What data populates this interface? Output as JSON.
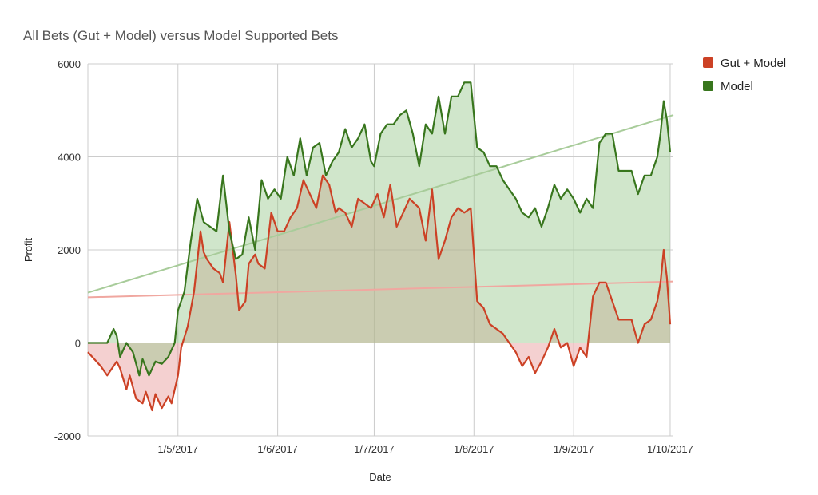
{
  "chart_data": {
    "type": "area",
    "title": "All Bets (Gut + Model) versus Model Supported Bets",
    "xlabel": "Date",
    "ylabel": "Profit",
    "ylim": [
      -2000,
      6000
    ],
    "yticks": [
      -2000,
      0,
      2000,
      4000,
      6000
    ],
    "xlim": [
      "2017-04-03",
      "2017-10-02"
    ],
    "xticks": [
      {
        "date": "2017-05-01",
        "label": "1/5/2017"
      },
      {
        "date": "2017-06-01",
        "label": "1/6/2017"
      },
      {
        "date": "2017-07-01",
        "label": "1/7/2017"
      },
      {
        "date": "2017-08-01",
        "label": "1/8/2017"
      },
      {
        "date": "2017-09-01",
        "label": "1/9/2017"
      },
      {
        "date": "2017-10-01",
        "label": "1/10/2017"
      }
    ],
    "grid": true,
    "legend_position": "right",
    "series": [
      {
        "name": "Gut + Model",
        "color": "#cc4125",
        "fill": "rgba(230,150,150,0.45)",
        "trendline": {
          "color": "#f0a7a0",
          "start": 980,
          "end": 1320
        },
        "x": [
          "2017-04-03",
          "2017-04-05",
          "2017-04-07",
          "2017-04-09",
          "2017-04-10",
          "2017-04-12",
          "2017-04-13",
          "2017-04-15",
          "2017-04-16",
          "2017-04-18",
          "2017-04-20",
          "2017-04-21",
          "2017-04-23",
          "2017-04-24",
          "2017-04-26",
          "2017-04-28",
          "2017-04-29",
          "2017-05-01",
          "2017-05-02",
          "2017-05-04",
          "2017-05-06",
          "2017-05-08",
          "2017-05-09",
          "2017-05-10",
          "2017-05-12",
          "2017-05-14",
          "2017-05-15",
          "2017-05-17",
          "2017-05-19",
          "2017-05-20",
          "2017-05-22",
          "2017-05-23",
          "2017-05-25",
          "2017-05-26",
          "2017-05-28",
          "2017-05-30",
          "2017-06-01",
          "2017-06-03",
          "2017-06-05",
          "2017-06-07",
          "2017-06-09",
          "2017-06-11",
          "2017-06-13",
          "2017-06-15",
          "2017-06-17",
          "2017-06-19",
          "2017-06-20",
          "2017-06-22",
          "2017-06-24",
          "2017-06-26",
          "2017-06-28",
          "2017-06-30",
          "2017-07-02",
          "2017-07-04",
          "2017-07-06",
          "2017-07-08",
          "2017-07-10",
          "2017-07-12",
          "2017-07-15",
          "2017-07-17",
          "2017-07-19",
          "2017-07-21",
          "2017-07-23",
          "2017-07-25",
          "2017-07-27",
          "2017-07-29",
          "2017-07-31",
          "2017-08-02",
          "2017-08-04",
          "2017-08-06",
          "2017-08-08",
          "2017-08-10",
          "2017-08-12",
          "2017-08-14",
          "2017-08-16",
          "2017-08-18",
          "2017-08-20",
          "2017-08-22",
          "2017-08-24",
          "2017-08-26",
          "2017-08-28",
          "2017-08-30",
          "2017-09-01",
          "2017-09-03",
          "2017-09-05",
          "2017-09-07",
          "2017-09-09",
          "2017-09-11",
          "2017-09-13",
          "2017-09-15",
          "2017-09-17",
          "2017-09-19",
          "2017-09-21",
          "2017-09-23",
          "2017-09-25",
          "2017-09-27",
          "2017-09-28",
          "2017-09-29",
          "2017-09-30",
          "2017-10-01"
        ],
        "values": [
          -200,
          -350,
          -500,
          -700,
          -600,
          -400,
          -550,
          -1000,
          -700,
          -1200,
          -1300,
          -1050,
          -1450,
          -1100,
          -1400,
          -1150,
          -1300,
          -700,
          -100,
          350,
          1100,
          2400,
          1950,
          1800,
          1600,
          1500,
          1300,
          2600,
          1450,
          700,
          900,
          1700,
          1900,
          1700,
          1600,
          2800,
          2400,
          2400,
          2700,
          2900,
          3500,
          3200,
          2900,
          3600,
          3400,
          2800,
          2900,
          2800,
          2500,
          3100,
          3000,
          2900,
          3200,
          2700,
          3400,
          2500,
          2800,
          3100,
          2900,
          2200,
          3300,
          1800,
          2200,
          2700,
          2900,
          2800,
          2900,
          900,
          750,
          400,
          300,
          200,
          0,
          -200,
          -500,
          -300,
          -650,
          -400,
          -100,
          300,
          -100,
          0,
          -500,
          -100,
          -300,
          1000,
          1300,
          1300,
          900,
          500,
          500,
          500,
          0,
          400,
          500,
          900,
          1300,
          2000,
          1400,
          400
        ]
      },
      {
        "name": "Model",
        "color": "#38761d",
        "fill": "rgba(150,200,140,0.45)",
        "trendline": {
          "color": "#a8cc9a",
          "start": 1080,
          "end": 4900
        },
        "x": [
          "2017-04-03",
          "2017-04-05",
          "2017-04-07",
          "2017-04-09",
          "2017-04-11",
          "2017-04-12",
          "2017-04-13",
          "2017-04-15",
          "2017-04-17",
          "2017-04-19",
          "2017-04-20",
          "2017-04-22",
          "2017-04-24",
          "2017-04-26",
          "2017-04-28",
          "2017-04-30",
          "2017-05-01",
          "2017-05-03",
          "2017-05-05",
          "2017-05-07",
          "2017-05-09",
          "2017-05-11",
          "2017-05-13",
          "2017-05-15",
          "2017-05-17",
          "2017-05-19",
          "2017-05-21",
          "2017-05-23",
          "2017-05-25",
          "2017-05-27",
          "2017-05-29",
          "2017-05-31",
          "2017-06-02",
          "2017-06-04",
          "2017-06-06",
          "2017-06-08",
          "2017-06-10",
          "2017-06-12",
          "2017-06-14",
          "2017-06-16",
          "2017-06-18",
          "2017-06-20",
          "2017-06-22",
          "2017-06-24",
          "2017-06-26",
          "2017-06-28",
          "2017-06-30",
          "2017-07-01",
          "2017-07-03",
          "2017-07-05",
          "2017-07-07",
          "2017-07-09",
          "2017-07-11",
          "2017-07-13",
          "2017-07-15",
          "2017-07-17",
          "2017-07-19",
          "2017-07-21",
          "2017-07-23",
          "2017-07-25",
          "2017-07-27",
          "2017-07-29",
          "2017-07-31",
          "2017-08-02",
          "2017-08-04",
          "2017-08-06",
          "2017-08-08",
          "2017-08-10",
          "2017-08-12",
          "2017-08-14",
          "2017-08-16",
          "2017-08-18",
          "2017-08-20",
          "2017-08-22",
          "2017-08-24",
          "2017-08-26",
          "2017-08-28",
          "2017-08-30",
          "2017-09-01",
          "2017-09-03",
          "2017-09-05",
          "2017-09-07",
          "2017-09-09",
          "2017-09-11",
          "2017-09-13",
          "2017-09-15",
          "2017-09-17",
          "2017-09-19",
          "2017-09-21",
          "2017-09-23",
          "2017-09-25",
          "2017-09-27",
          "2017-09-28",
          "2017-09-29",
          "2017-09-30",
          "2017-10-01"
        ],
        "values": [
          0,
          0,
          0,
          0,
          300,
          150,
          -300,
          0,
          -200,
          -700,
          -350,
          -700,
          -400,
          -450,
          -300,
          0,
          700,
          1100,
          2200,
          3100,
          2600,
          2500,
          2400,
          3600,
          2400,
          1800,
          1900,
          2700,
          2000,
          3500,
          3100,
          3300,
          3100,
          4000,
          3600,
          4400,
          3600,
          4200,
          4300,
          3600,
          3900,
          4100,
          4600,
          4200,
          4400,
          4700,
          3900,
          3800,
          4500,
          4700,
          4700,
          4900,
          5000,
          4500,
          3800,
          4700,
          4500,
          5300,
          4500,
          5300,
          5300,
          5600,
          5600,
          4200,
          4100,
          3800,
          3800,
          3500,
          3300,
          3100,
          2800,
          2700,
          2900,
          2500,
          2900,
          3400,
          3100,
          3300,
          3100,
          2800,
          3100,
          2900,
          4300,
          4500,
          4500,
          3700,
          3700,
          3700,
          3200,
          3600,
          3600,
          4000,
          4500,
          5200,
          4800,
          4100
        ]
      }
    ]
  }
}
